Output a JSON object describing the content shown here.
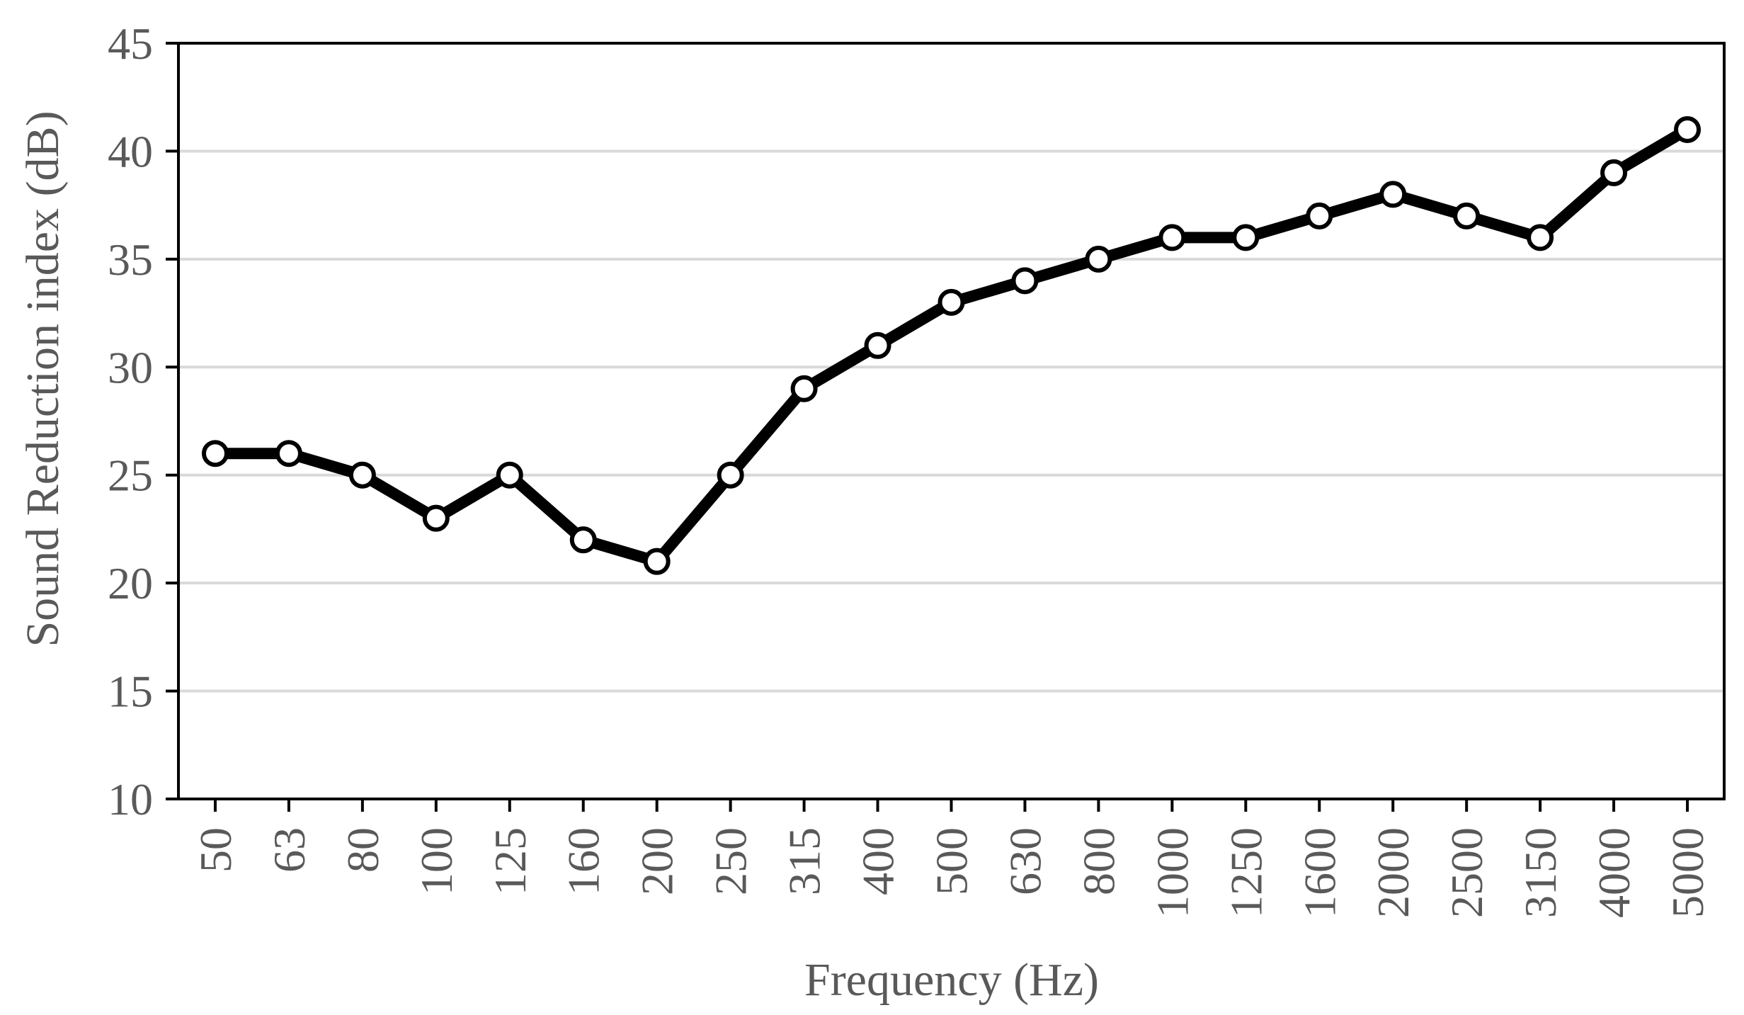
{
  "chart_data": {
    "type": "line",
    "title": "",
    "xlabel": "Frequency (Hz)",
    "ylabel": "Sound Reduction index (dB)",
    "categories": [
      "50",
      "63",
      "80",
      "100",
      "125",
      "160",
      "200",
      "250",
      "315",
      "400",
      "500",
      "630",
      "800",
      "1000",
      "1250",
      "1600",
      "2000",
      "2500",
      "3150",
      "4000",
      "5000"
    ],
    "series": [
      {
        "values": [
          26,
          26,
          25,
          23,
          25,
          22,
          21,
          25,
          29,
          31,
          33,
          34,
          35,
          36,
          36,
          37,
          38,
          37,
          36,
          39,
          41
        ]
      }
    ],
    "ylim": [
      10,
      45
    ],
    "yticks": [
      10,
      15,
      20,
      25,
      30,
      35,
      40,
      45
    ],
    "grid": "horizontal",
    "legend": "none",
    "colors": {
      "line": "#000000",
      "marker_fill": "#ffffff",
      "grid": "#d9d9d9",
      "text": "#595959"
    }
  }
}
